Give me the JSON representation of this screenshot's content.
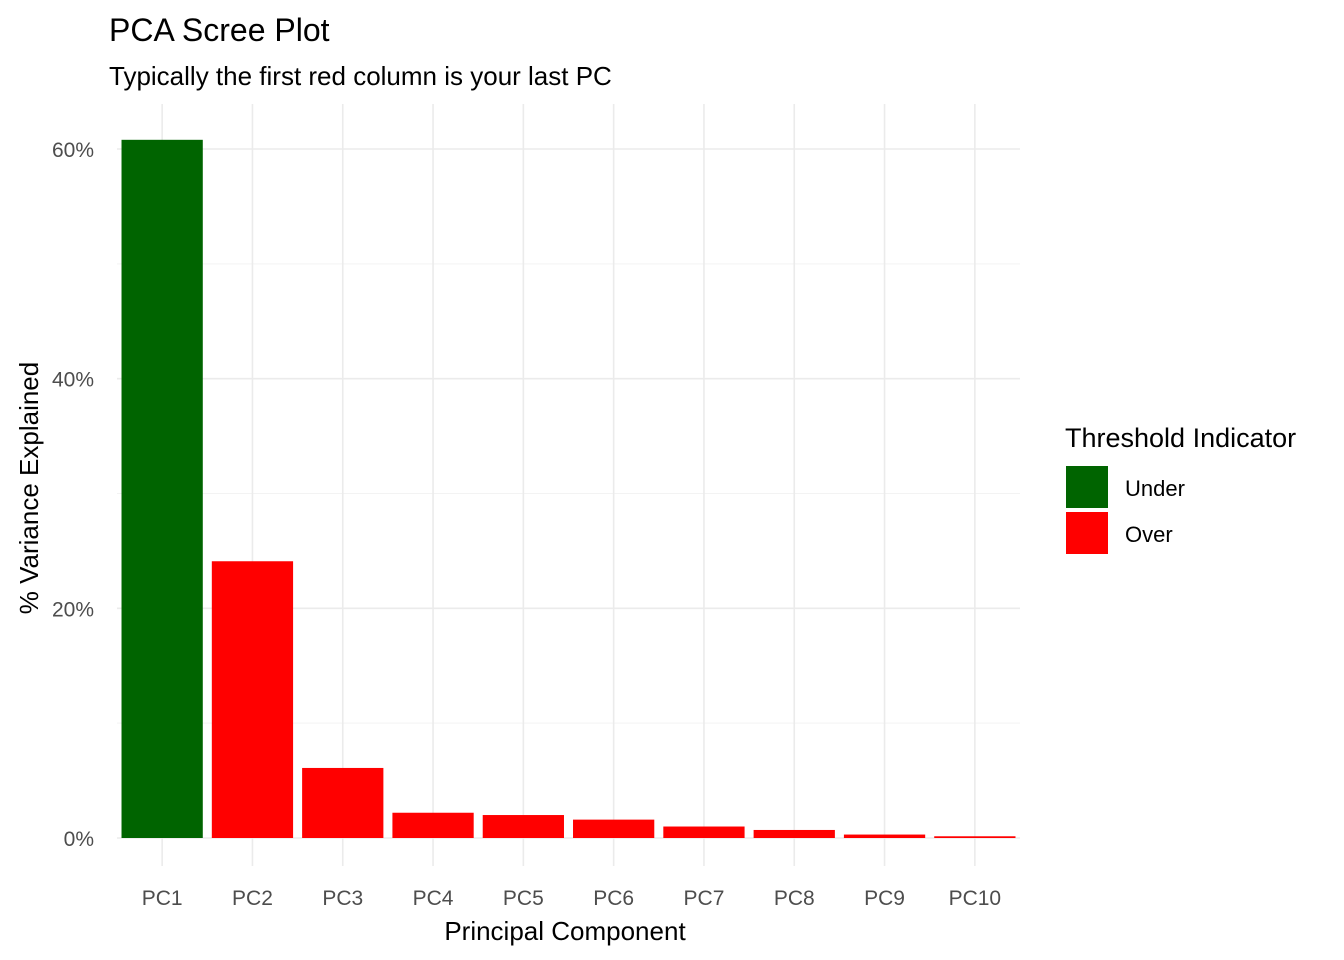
{
  "chart_data": {
    "type": "bar",
    "title": "PCA Scree Plot",
    "subtitle": "Typically the first red column is your last PC",
    "xlabel": "Principal Component",
    "ylabel": "% Variance Explained",
    "categories": [
      "PC1",
      "PC2",
      "PC3",
      "PC4",
      "PC5",
      "PC6",
      "PC7",
      "PC8",
      "PC9",
      "PC10"
    ],
    "values": [
      60.8,
      24.1,
      6.1,
      2.2,
      2.0,
      1.6,
      1.0,
      0.7,
      0.3,
      0.15
    ],
    "groups": [
      "Under",
      "Over",
      "Over",
      "Over",
      "Over",
      "Over",
      "Over",
      "Over",
      "Over",
      "Over"
    ],
    "ylim": [
      0,
      63
    ],
    "yticks": [
      0,
      20,
      40,
      60
    ],
    "ytick_labels": [
      "0%",
      "20%",
      "40%",
      "60%"
    ],
    "grid": true,
    "legend": {
      "title": "Threshold Indicator",
      "placement": "right",
      "entries": [
        {
          "label": "Under",
          "color": "#006400"
        },
        {
          "label": "Over",
          "color": "#ff0000"
        }
      ]
    },
    "colors": {
      "Under": "#006400",
      "Over": "#ff0000"
    }
  }
}
